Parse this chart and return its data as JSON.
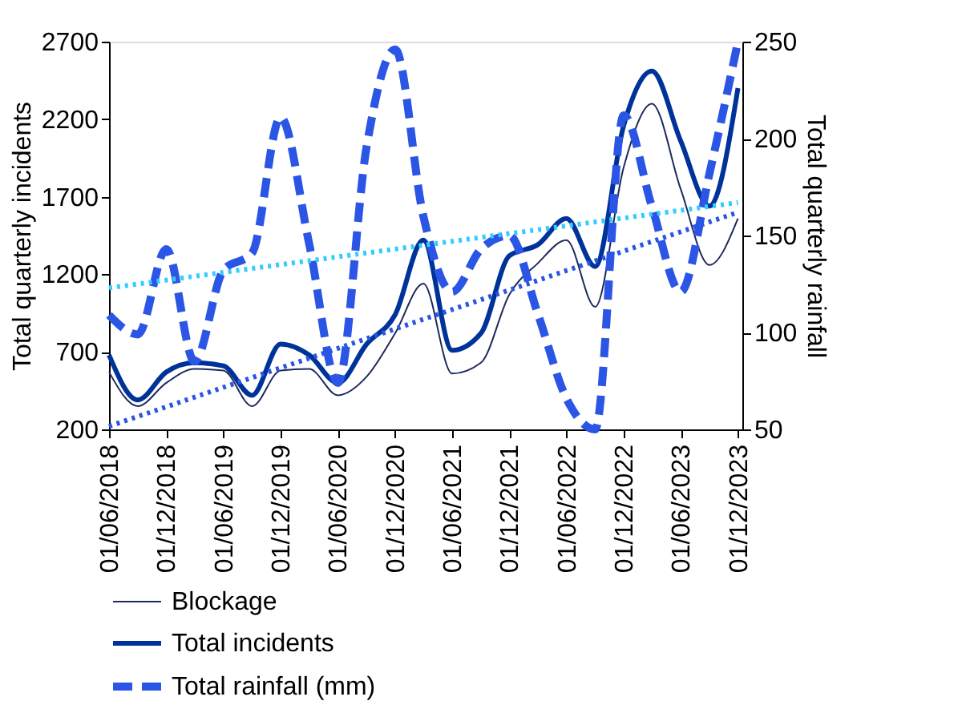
{
  "chart_data": {
    "type": "line",
    "xlabel": null,
    "ylabel": "Total quarterly incidents",
    "y2label": "Total quarterly rainfall",
    "x": [
      "2018-06-01",
      "2018-09-01",
      "2018-12-01",
      "2019-03-01",
      "2019-06-01",
      "2019-09-01",
      "2019-12-01",
      "2020-03-01",
      "2020-06-01",
      "2020-09-01",
      "2020-12-01",
      "2021-03-01",
      "2021-06-01",
      "2021-09-01",
      "2021-12-01",
      "2022-03-01",
      "2022-06-01",
      "2022-09-01",
      "2022-12-01",
      "2023-03-01",
      "2023-06-01",
      "2023-09-01",
      "2023-12-01"
    ],
    "xlim": [
      "2018-06-01",
      "2023-12-15"
    ],
    "xticks": [
      {
        "value": "2018-06-01",
        "label": "01/06/2018"
      },
      {
        "value": "2018-12-01",
        "label": "01/12/2018"
      },
      {
        "value": "2019-06-01",
        "label": "01/06/2019"
      },
      {
        "value": "2019-12-01",
        "label": "01/12/2019"
      },
      {
        "value": "2020-06-01",
        "label": "01/06/2020"
      },
      {
        "value": "2020-12-01",
        "label": "01/12/2020"
      },
      {
        "value": "2021-06-01",
        "label": "01/06/2021"
      },
      {
        "value": "2021-12-01",
        "label": "01/12/2021"
      },
      {
        "value": "2022-06-01",
        "label": "01/06/2022"
      },
      {
        "value": "2022-12-01",
        "label": "01/12/2022"
      },
      {
        "value": "2023-06-01",
        "label": "01/06/2023"
      },
      {
        "value": "2023-12-01",
        "label": "01/12/2023"
      }
    ],
    "ylim": [
      200,
      2700
    ],
    "yticks": [
      200,
      700,
      1200,
      1700,
      2200,
      2700
    ],
    "y2lim": [
      50,
      250
    ],
    "y2ticks": [
      50,
      100,
      150,
      200,
      250
    ],
    "grid": false,
    "legend": "bottom",
    "series": [
      {
        "name": "Blockage",
        "color": "#1f2a5c",
        "line_style": "solid",
        "values": [
          570,
          350,
          500,
          590,
          580,
          350,
          580,
          590,
          420,
          540,
          820,
          1140,
          560,
          630,
          1070,
          1270,
          1420,
          990,
          1890,
          2300,
          1750,
          1260,
          1560
        ]
      },
      {
        "name": "Total incidents",
        "color": "#003399",
        "line_style": "solid",
        "values": [
          680,
          390,
          570,
          630,
          610,
          420,
          750,
          680,
          500,
          750,
          940,
          1420,
          710,
          820,
          1320,
          1390,
          1560,
          1250,
          2160,
          2510,
          2060,
          1640,
          2400
        ]
      },
      {
        "name": "Total rainfall (mm)",
        "color": "#2a55e5",
        "line_style": "dashed",
        "axis": "y2",
        "values": [
          109,
          99,
          143,
          85,
          132,
          141,
          211,
          146,
          74,
          196,
          246,
          160,
          121,
          143,
          150,
          110,
          66,
          50,
          212,
          165,
          121,
          182,
          250
        ]
      },
      {
        "type": "line",
        "color": "#33ccff",
        "line_style": "dotted",
        "axis": "y2",
        "x": [
          "2018-06-01",
          "2023-12-01"
        ],
        "values": [
          123,
          167
        ]
      },
      {
        "type": "line",
        "color": "#2a55e5",
        "line_style": "dotted",
        "x": [
          "2018-06-01",
          "2023-12-01"
        ],
        "values": [
          220,
          1600
        ]
      }
    ]
  }
}
